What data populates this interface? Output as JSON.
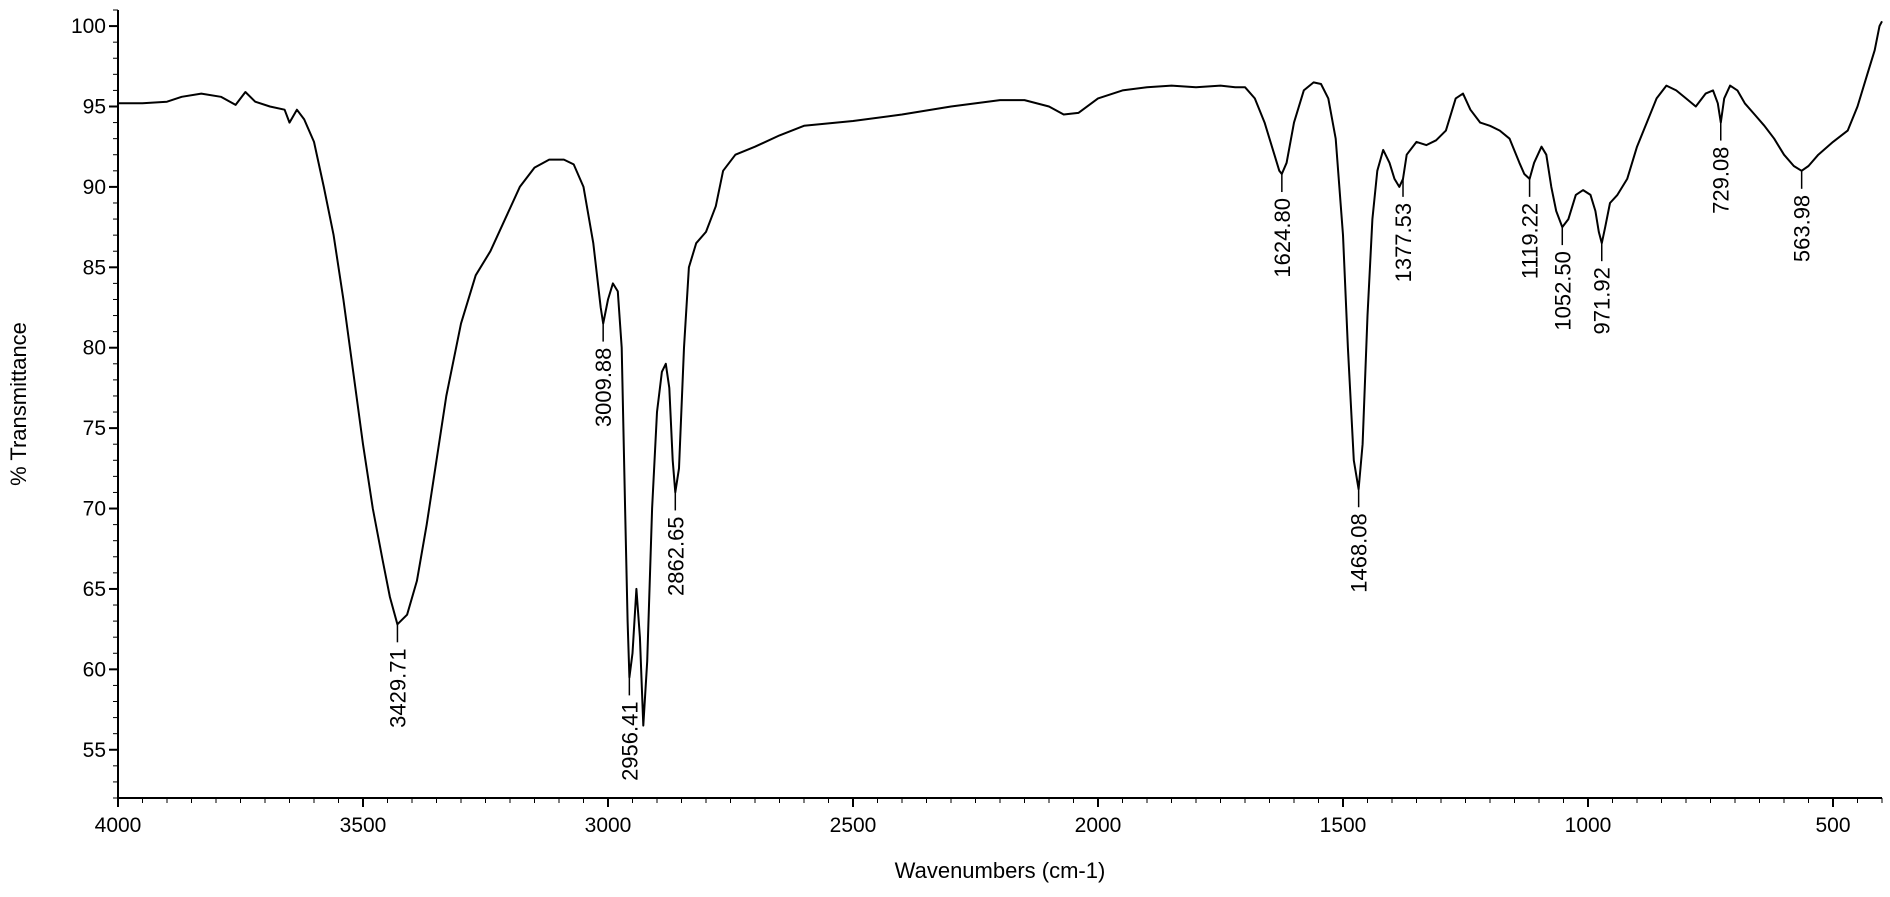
{
  "chart_data": {
    "type": "line",
    "title": "",
    "xlabel": "Wavenumbers (cm-1)",
    "ylabel": "% Transmittance",
    "xlim": [
      4000,
      400
    ],
    "ylim": [
      52,
      101
    ],
    "x_reversed": true,
    "grid": false,
    "legend": "none",
    "line_color": "#000000",
    "x_ticks": [
      4000,
      3500,
      3000,
      2500,
      2000,
      1500,
      1000,
      500
    ],
    "x_tick_labels": [
      "4000",
      "3500",
      "3000",
      "2500",
      "2000",
      "1500",
      "1000",
      "500"
    ],
    "y_ticks": [
      55,
      60,
      65,
      70,
      75,
      80,
      85,
      90,
      95,
      100
    ],
    "y_tick_labels": [
      "55",
      "60",
      "65",
      "70",
      "75",
      "80",
      "85",
      "90",
      "95",
      "100"
    ],
    "series": [
      {
        "points": [
          [
            4000,
            95.2
          ],
          [
            3950,
            95.2
          ],
          [
            3900,
            95.3
          ],
          [
            3870,
            95.6
          ],
          [
            3830,
            95.8
          ],
          [
            3790,
            95.6
          ],
          [
            3760,
            95.1
          ],
          [
            3740,
            95.9
          ],
          [
            3720,
            95.3
          ],
          [
            3690,
            95.0
          ],
          [
            3660,
            94.8
          ],
          [
            3650,
            94.0
          ],
          [
            3635,
            94.8
          ],
          [
            3620,
            94.2
          ],
          [
            3600,
            92.8
          ],
          [
            3580,
            90.0
          ],
          [
            3560,
            87.0
          ],
          [
            3540,
            83.0
          ],
          [
            3520,
            78.5
          ],
          [
            3500,
            74.0
          ],
          [
            3480,
            70.0
          ],
          [
            3460,
            66.8
          ],
          [
            3445,
            64.5
          ],
          [
            3429.71,
            62.8
          ],
          [
            3410,
            63.4
          ],
          [
            3390,
            65.5
          ],
          [
            3370,
            69.0
          ],
          [
            3350,
            73.0
          ],
          [
            3330,
            77.0
          ],
          [
            3300,
            81.5
          ],
          [
            3270,
            84.5
          ],
          [
            3240,
            86.0
          ],
          [
            3210,
            88.0
          ],
          [
            3180,
            90.0
          ],
          [
            3150,
            91.2
          ],
          [
            3120,
            91.7
          ],
          [
            3090,
            91.7
          ],
          [
            3070,
            91.4
          ],
          [
            3050,
            90.0
          ],
          [
            3030,
            86.5
          ],
          [
            3015,
            82.5
          ],
          [
            3009.88,
            81.5
          ],
          [
            3000,
            83.0
          ],
          [
            2990,
            84.0
          ],
          [
            2980,
            83.5
          ],
          [
            2972,
            80.0
          ],
          [
            2965,
            70.0
          ],
          [
            2960,
            63.0
          ],
          [
            2956.41,
            59.5
          ],
          [
            2950,
            61.0
          ],
          [
            2942,
            65.0
          ],
          [
            2935,
            62.0
          ],
          [
            2928,
            56.5
          ],
          [
            2920,
            60.5
          ],
          [
            2910,
            70.0
          ],
          [
            2900,
            76.0
          ],
          [
            2890,
            78.5
          ],
          [
            2882,
            79.0
          ],
          [
            2875,
            77.5
          ],
          [
            2868,
            73.0
          ],
          [
            2862.65,
            71.0
          ],
          [
            2855,
            72.5
          ],
          [
            2845,
            80.0
          ],
          [
            2835,
            85.0
          ],
          [
            2820,
            86.5
          ],
          [
            2800,
            87.2
          ],
          [
            2780,
            88.8
          ],
          [
            2765,
            91.0
          ],
          [
            2740,
            92.0
          ],
          [
            2700,
            92.5
          ],
          [
            2650,
            93.2
          ],
          [
            2600,
            93.8
          ],
          [
            2500,
            94.1
          ],
          [
            2400,
            94.5
          ],
          [
            2300,
            95.0
          ],
          [
            2200,
            95.4
          ],
          [
            2150,
            95.4
          ],
          [
            2100,
            95.0
          ],
          [
            2070,
            94.5
          ],
          [
            2040,
            94.6
          ],
          [
            2000,
            95.5
          ],
          [
            1950,
            96.0
          ],
          [
            1900,
            96.2
          ],
          [
            1850,
            96.3
          ],
          [
            1800,
            96.2
          ],
          [
            1750,
            96.3
          ],
          [
            1720,
            96.2
          ],
          [
            1700,
            96.2
          ],
          [
            1680,
            95.5
          ],
          [
            1660,
            94.0
          ],
          [
            1640,
            92.0
          ],
          [
            1630,
            91.0
          ],
          [
            1624.8,
            90.8
          ],
          [
            1615,
            91.5
          ],
          [
            1600,
            94.0
          ],
          [
            1580,
            96.0
          ],
          [
            1560,
            96.5
          ],
          [
            1545,
            96.4
          ],
          [
            1530,
            95.5
          ],
          [
            1515,
            93.0
          ],
          [
            1500,
            87.0
          ],
          [
            1490,
            80.0
          ],
          [
            1478,
            73.0
          ],
          [
            1468.08,
            71.2
          ],
          [
            1460,
            74.0
          ],
          [
            1450,
            82.0
          ],
          [
            1440,
            88.0
          ],
          [
            1430,
            91.0
          ],
          [
            1418,
            92.3
          ],
          [
            1405,
            91.5
          ],
          [
            1395,
            90.5
          ],
          [
            1385,
            90.0
          ],
          [
            1377.53,
            90.5
          ],
          [
            1370,
            92.0
          ],
          [
            1350,
            92.8
          ],
          [
            1330,
            92.6
          ],
          [
            1310,
            92.9
          ],
          [
            1290,
            93.5
          ],
          [
            1270,
            95.5
          ],
          [
            1255,
            95.8
          ],
          [
            1240,
            94.8
          ],
          [
            1220,
            94.0
          ],
          [
            1200,
            93.8
          ],
          [
            1180,
            93.5
          ],
          [
            1160,
            93.0
          ],
          [
            1140,
            91.5
          ],
          [
            1130,
            90.8
          ],
          [
            1119.22,
            90.5
          ],
          [
            1110,
            91.5
          ],
          [
            1095,
            92.5
          ],
          [
            1085,
            92.0
          ],
          [
            1075,
            90.0
          ],
          [
            1065,
            88.5
          ],
          [
            1052.5,
            87.5
          ],
          [
            1040,
            88.0
          ],
          [
            1025,
            89.5
          ],
          [
            1010,
            89.8
          ],
          [
            995,
            89.5
          ],
          [
            985,
            88.5
          ],
          [
            978,
            87.2
          ],
          [
            971.92,
            86.5
          ],
          [
            965,
            87.5
          ],
          [
            955,
            89.0
          ],
          [
            940,
            89.5
          ],
          [
            920,
            90.5
          ],
          [
            900,
            92.5
          ],
          [
            880,
            94.0
          ],
          [
            860,
            95.5
          ],
          [
            840,
            96.3
          ],
          [
            820,
            96.0
          ],
          [
            800,
            95.5
          ],
          [
            780,
            95.0
          ],
          [
            760,
            95.8
          ],
          [
            745,
            96.0
          ],
          [
            735,
            95.2
          ],
          [
            729.08,
            94.0
          ],
          [
            722,
            95.5
          ],
          [
            710,
            96.3
          ],
          [
            695,
            96.0
          ],
          [
            680,
            95.2
          ],
          [
            660,
            94.5
          ],
          [
            640,
            93.8
          ],
          [
            620,
            93.0
          ],
          [
            600,
            92.0
          ],
          [
            580,
            91.3
          ],
          [
            563.98,
            91.0
          ],
          [
            550,
            91.3
          ],
          [
            530,
            92.0
          ],
          [
            500,
            92.8
          ],
          [
            470,
            93.5
          ],
          [
            450,
            95.0
          ],
          [
            430,
            97.0
          ],
          [
            415,
            98.5
          ],
          [
            405,
            100.0
          ],
          [
            400,
            100.3
          ]
        ]
      }
    ],
    "annotations": [
      {
        "text": "3429.71",
        "x": 3429.71,
        "y": 62.8,
        "placement": "below"
      },
      {
        "text": "3009.88",
        "x": 3009.88,
        "y": 81.5,
        "placement": "below"
      },
      {
        "text": "2956.41",
        "x": 2956.41,
        "y": 59.5,
        "placement": "below"
      },
      {
        "text": "2862.65",
        "x": 2862.65,
        "y": 71.0,
        "placement": "below"
      },
      {
        "text": "1624.80",
        "x": 1624.8,
        "y": 90.8,
        "placement": "below"
      },
      {
        "text": "1468.08",
        "x": 1468.08,
        "y": 71.2,
        "placement": "below"
      },
      {
        "text": "1377.53",
        "x": 1377.53,
        "y": 90.5,
        "placement": "below"
      },
      {
        "text": "1119.22",
        "x": 1119.22,
        "y": 90.5,
        "placement": "below"
      },
      {
        "text": "1052.50",
        "x": 1052.5,
        "y": 87.5,
        "placement": "below"
      },
      {
        "text": "971.92",
        "x": 971.92,
        "y": 86.5,
        "placement": "below"
      },
      {
        "text": "729.08",
        "x": 729.08,
        "y": 94.0,
        "placement": "below"
      },
      {
        "text": "563.98",
        "x": 563.98,
        "y": 91.0,
        "placement": "below"
      }
    ]
  }
}
